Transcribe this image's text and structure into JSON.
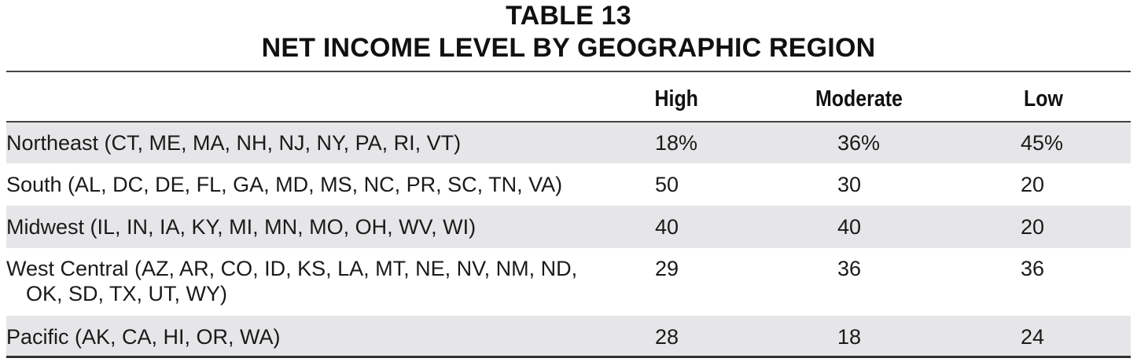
{
  "table": {
    "title_line1": "TABLE 13",
    "title_line2": "NET INCOME LEVEL BY GEOGRAPHIC REGION",
    "columns": [
      "High",
      "Moderate",
      "Low"
    ],
    "rows": [
      {
        "region": "Northeast (CT, ME, MA, NH, NJ, NY, PA, RI, VT)",
        "region_cont": "",
        "high": "18%",
        "moderate": "36%",
        "low": "45%"
      },
      {
        "region": "South (AL, DC, DE, FL, GA, MD, MS, NC, PR, SC, TN, VA)",
        "region_cont": "",
        "high": "50",
        "moderate": "30",
        "low": "20"
      },
      {
        "region": "Midwest (IL, IN, IA, KY, MI, MN, MO, OH, WV, WI)",
        "region_cont": "",
        "high": "40",
        "moderate": "40",
        "low": "20"
      },
      {
        "region": "West Central (AZ, AR, CO, ID, KS, LA, MT, NE, NV, NM, ND,",
        "region_cont": "OK, SD, TX, UT, WY)",
        "high": "29",
        "moderate": "36",
        "low": "36"
      },
      {
        "region": "Pacific (AK, CA, HI, OR, WA)",
        "region_cont": "",
        "high": "28",
        "moderate": "18",
        "low": "24"
      }
    ]
  },
  "colors": {
    "row_shade": "#e6e6e9",
    "rule": "#444444",
    "text": "#1a1a1a"
  }
}
